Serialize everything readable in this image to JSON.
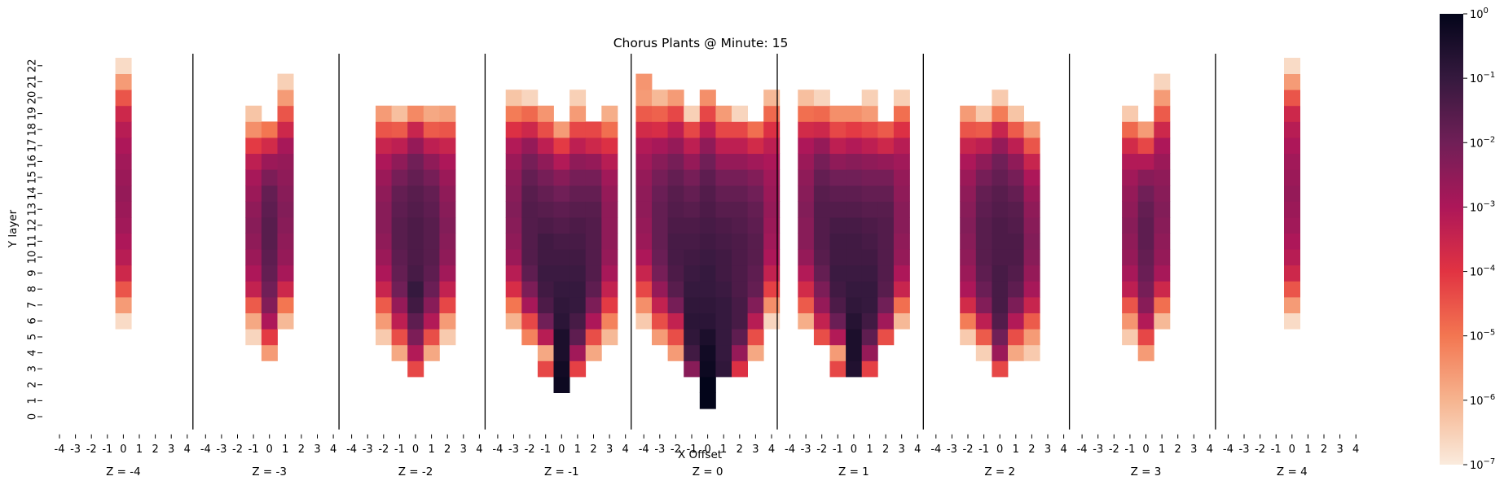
{
  "chart_data": {
    "type": "heatmap",
    "title": "Chorus Plants @ Minute: 15",
    "xlabel": "X Offset",
    "ylabel": "Y layer",
    "x_ticks": [
      "-4",
      "-3",
      "-2",
      "-1",
      "0",
      "1",
      "2",
      "3",
      "4"
    ],
    "y_ticks": [
      "0",
      "1",
      "2",
      "3",
      "4",
      "5",
      "6",
      "7",
      "8",
      "9",
      "10",
      "11",
      "12",
      "13",
      "14",
      "15",
      "16",
      "17",
      "18",
      "19",
      "20",
      "21",
      "22"
    ],
    "value_scale": "log10",
    "value_unit_note": "cell values are stored as log10 exponents",
    "colorbar": {
      "scale": "log",
      "min": 1e-07,
      "max": 1,
      "tick_bases": [
        "10",
        "10",
        "10",
        "10",
        "10",
        "10",
        "10",
        "10"
      ],
      "tick_exponents": [
        "0",
        "−1",
        "−2",
        "−3",
        "−4",
        "−5",
        "−6",
        "−7"
      ],
      "colors": [
        "#faebdd",
        "#f6b48f",
        "#f37651",
        "#e13342",
        "#ad1759",
        "#701f57",
        "#35193e",
        "#03051a"
      ]
    },
    "panels": [
      {
        "label": "Z = -4",
        "columns": [
          {
            "x": 0,
            "y_start": 6,
            "log10_values": [
              -6.7,
              -5.6,
              -4.5,
              -3.6,
              -3.2,
              -3.0,
              -2.8,
              -2.7,
              -2.6,
              -2.7,
              -2.8,
              -3.0,
              -3.2,
              -3.6,
              -4.5,
              -5.6,
              -6.7
            ]
          }
        ]
      },
      {
        "label": "Z = -3",
        "columns": [
          {
            "x": -1,
            "y_start": 5,
            "log10_values": [
              -6.6,
              -5.8,
              -4.6,
              -3.4,
              -3.0,
              -2.7,
              -2.5,
              -2.4,
              -2.5,
              -2.7,
              -2.9,
              -3.3,
              -4.1,
              -5.4,
              -6.3
            ]
          },
          {
            "x": 0,
            "y_start": 4,
            "log10_values": [
              -5.6,
              -4.1,
              -3.0,
              -2.3,
              -2.0,
              -1.8,
              -1.7,
              -1.6,
              -1.6,
              -1.7,
              -1.8,
              -2.2,
              -2.7,
              -3.7,
              -5.0
            ]
          },
          {
            "x": 1,
            "y_start": 6,
            "log10_values": [
              -6.1,
              -5.0,
              -3.6,
              -2.9,
              -2.6,
              -2.5,
              -2.4,
              -2.3,
              -2.4,
              -2.5,
              -2.6,
              -2.9,
              -3.6,
              -4.5,
              -5.6,
              -6.5
            ]
          }
        ]
      },
      {
        "label": "Z = -2",
        "columns": [
          {
            "x": -2,
            "y_start": 5,
            "log10_values": [
              -6.4,
              -5.6,
              -4.6,
              -3.5,
              -3.0,
              -2.7,
              -2.5,
              -2.4,
              -2.4,
              -2.5,
              -2.7,
              -3.0,
              -3.5,
              -4.5,
              -5.6
            ]
          },
          {
            "x": -1,
            "y_start": 4,
            "log10_values": [
              -5.8,
              -4.4,
              -3.3,
              -2.6,
              -2.0,
              -1.8,
              -1.7,
              -1.6,
              -1.6,
              -1.7,
              -1.8,
              -2.1,
              -2.5,
              -3.3,
              -4.6,
              -6.2
            ]
          },
          {
            "x": 0,
            "y_start": 3,
            "log10_values": [
              -4.3,
              -3.1,
              -2.2,
              -1.7,
              -1.2,
              -1.0,
              -1.3,
              -1.4,
              -1.4,
              -1.4,
              -1.5,
              -1.6,
              -1.8,
              -2.0,
              -2.6,
              -3.5,
              -5.3
            ]
          },
          {
            "x": 1,
            "y_start": 4,
            "log10_values": [
              -5.8,
              -4.4,
              -3.1,
              -2.4,
              -1.9,
              -1.7,
              -1.6,
              -1.6,
              -1.6,
              -1.7,
              -1.8,
              -2.1,
              -2.5,
              -3.3,
              -4.6,
              -5.8
            ]
          },
          {
            "x": 2,
            "y_start": 5,
            "log10_values": [
              -6.4,
              -5.6,
              -4.3,
              -3.4,
              -2.8,
              -2.5,
              -2.4,
              -2.3,
              -2.4,
              -2.5,
              -2.7,
              -3.0,
              -3.5,
              -4.5,
              -5.7
            ]
          }
        ]
      },
      {
        "label": "Z = -1",
        "columns": [
          {
            "x": -3,
            "y_start": 6,
            "log10_values": [
              -6.0,
              -5.0,
              -3.8,
              -3.2,
              -2.7,
              -2.5,
              -2.4,
              -2.3,
              -2.4,
              -2.5,
              -2.7,
              -3.1,
              -3.9,
              -5.1,
              -6.3
            ]
          },
          {
            "x": -2,
            "y_start": 5,
            "log10_values": [
              -5.2,
              -4.3,
              -2.9,
              -2.2,
              -1.7,
              -1.5,
              -1.5,
              -1.5,
              -1.5,
              -1.6,
              -1.8,
              -2.1,
              -2.6,
              -3.6,
              -4.8,
              -6.6
            ]
          },
          {
            "x": -1,
            "y_start": 3,
            "log10_values": [
              -4.3,
              -5.8,
              -3.2,
              -2.0,
              -1.4,
              -1.2,
              -1.1,
              -1.2,
              -1.2,
              -1.4,
              -1.6,
              -1.8,
              -2.1,
              -2.5,
              -3.3,
              -4.4,
              -5.5
            ]
          },
          {
            "x": 0,
            "y_start": 2,
            "log10_values": [
              -0.2,
              -0.3,
              -0.5,
              -0.5,
              -0.8,
              -0.9,
              -1.0,
              -1.1,
              -1.2,
              -1.3,
              -1.5,
              -1.7,
              -2.0,
              -2.4,
              -3.1,
              -4.1,
              -5.6
            ]
          },
          {
            "x": 1,
            "y_start": 3,
            "log10_values": [
              -4.2,
              -2.8,
              -1.7,
              -1.3,
              -1.0,
              -1.0,
              -1.1,
              -1.2,
              -1.3,
              -1.4,
              -1.6,
              -1.8,
              -2.1,
              -2.5,
              -3.3,
              -4.3,
              -5.6,
              -6.5
            ]
          },
          {
            "x": 2,
            "y_start": 4,
            "log10_values": [
              -5.8,
              -4.4,
              -3.0,
              -2.2,
              -1.7,
              -1.5,
              -1.5,
              -1.5,
              -1.5,
              -1.6,
              -1.8,
              -2.1,
              -2.6,
              -3.6,
              -4.3
            ]
          },
          {
            "x": 3,
            "y_start": 5,
            "log10_values": [
              -6.1,
              -5.2,
              -4.1,
              -3.4,
              -2.9,
              -2.6,
              -2.5,
              -2.5,
              -2.5,
              -2.6,
              -2.8,
              -3.2,
              -3.9,
              -4.9,
              -5.9
            ]
          }
        ]
      },
      {
        "label": "Z = 0",
        "columns": [
          {
            "x": -4,
            "y_start": 6,
            "log10_values": [
              -6.4,
              -5.4,
              -4.3,
              -3.5,
              -3.0,
              -2.7,
              -2.6,
              -2.5,
              -2.5,
              -2.6,
              -2.8,
              -3.1,
              -3.7,
              -4.6,
              -5.6,
              -5.5
            ]
          },
          {
            "x": -3,
            "y_start": 5,
            "log10_values": [
              -5.6,
              -4.4,
              -3.4,
              -2.6,
              -2.1,
              -1.9,
              -1.8,
              -1.8,
              -1.8,
              -1.9,
              -2.1,
              -2.4,
              -2.9,
              -3.8,
              -4.7,
              -6.1
            ]
          },
          {
            "x": -2,
            "y_start": 4,
            "log10_values": [
              -5.6,
              -4.4,
              -3.4,
              -2.1,
              -1.6,
              -1.4,
              -1.3,
              -1.3,
              -1.4,
              -1.5,
              -1.6,
              -1.8,
              -2.1,
              -2.6,
              -3.3,
              -4.3,
              -5.6
            ]
          },
          {
            "x": -1,
            "y_start": 3,
            "log10_values": [
              -2.4,
              -1.2,
              -0.9,
              -0.8,
              -0.9,
              -1.0,
              -1.1,
              -1.2,
              -1.3,
              -1.4,
              -1.6,
              -1.8,
              -2.1,
              -2.6,
              -3.3,
              -4.3,
              -6.5
            ]
          },
          {
            "x": 0,
            "y_start": 1,
            "log10_values": [
              0.0,
              0.0,
              -0.2,
              -0.3,
              -0.5,
              -0.8,
              -0.9,
              -1.0,
              -1.0,
              -1.1,
              -1.2,
              -1.3,
              -1.4,
              -1.5,
              -1.7,
              -2.0,
              -2.5,
              -3.3,
              -4.3,
              -5.4
            ]
          },
          {
            "x": 1,
            "y_start": 3,
            "log10_values": [
              -0.9,
              -1.0,
              -1.0,
              -1.0,
              -1.0,
              -1.1,
              -1.2,
              -1.2,
              -1.3,
              -1.4,
              -1.6,
              -1.8,
              -2.1,
              -2.6,
              -3.3,
              -4.3,
              -5.6
            ]
          },
          {
            "x": 2,
            "y_start": 3,
            "log10_values": [
              -3.9,
              -2.6,
              -1.7,
              -1.3,
              -1.3,
              -1.4,
              -1.4,
              -1.4,
              -1.4,
              -1.5,
              -1.6,
              -1.8,
              -2.1,
              -2.6,
              -3.3,
              -4.3,
              -6.6
            ]
          },
          {
            "x": 3,
            "y_start": 4,
            "log10_values": [
              -5.8,
              -4.4,
              -3.2,
              -2.3,
              -1.8,
              -1.7,
              -1.6,
              -1.6,
              -1.7,
              -1.8,
              -2.0,
              -2.3,
              -2.8,
              -3.7,
              -4.9
            ]
          },
          {
            "x": 4,
            "y_start": 6,
            "log10_values": [
              -6.6,
              -5.4,
              -4.2,
              -3.4,
              -3.0,
              -2.8,
              -2.7,
              -2.6,
              -2.7,
              -2.8,
              -3.0,
              -3.3,
              -3.9,
              -4.8,
              -6.1
            ]
          }
        ]
      },
      {
        "label": "Z = 1",
        "columns": [
          {
            "x": -3,
            "y_start": 6,
            "log10_values": [
              -5.9,
              -4.6,
              -3.7,
              -3.1,
              -2.6,
              -2.4,
              -2.4,
              -2.3,
              -2.4,
              -2.5,
              -2.7,
              -3.0,
              -3.7,
              -4.9,
              -6.2
            ]
          },
          {
            "x": -2,
            "y_start": 5,
            "log10_values": [
              -4.4,
              -3.4,
              -2.6,
              -2.2,
              -1.8,
              -1.6,
              -1.5,
              -1.5,
              -1.5,
              -1.6,
              -1.8,
              -2.1,
              -2.6,
              -3.6,
              -4.8,
              -6.6
            ]
          },
          {
            "x": -1,
            "y_start": 3,
            "log10_values": [
              -4.3,
              -5.6,
              -3.1,
              -1.9,
              -1.4,
              -1.2,
              -1.1,
              -1.2,
              -1.2,
              -1.3,
              -1.5,
              -1.7,
              -2.0,
              -2.5,
              -3.3,
              -4.3,
              -5.4
            ]
          },
          {
            "x": 0,
            "y_start": 3,
            "log10_values": [
              -0.6,
              -0.5,
              -0.5,
              -0.7,
              -0.9,
              -1.0,
              -1.1,
              -1.2,
              -1.2,
              -1.3,
              -1.5,
              -1.7,
              -2.0,
              -2.4,
              -3.1,
              -4.1,
              -5.4
            ]
          },
          {
            "x": 1,
            "y_start": 3,
            "log10_values": [
              -4.2,
              -2.6,
              -1.7,
              -1.2,
              -1.0,
              -1.0,
              -1.1,
              -1.2,
              -1.3,
              -1.4,
              -1.6,
              -1.8,
              -2.1,
              -2.5,
              -3.3,
              -4.3,
              -5.6,
              -6.5
            ]
          },
          {
            "x": 2,
            "y_start": 5,
            "log10_values": [
              -4.4,
              -2.8,
              -2.0,
              -1.6,
              -1.5,
              -1.5,
              -1.5,
              -1.5,
              -1.6,
              -1.8,
              -2.1,
              -2.6,
              -3.6,
              -4.6
            ]
          },
          {
            "x": 3,
            "y_start": 6,
            "log10_values": [
              -6.1,
              -4.9,
              -3.5,
              -3.0,
              -2.6,
              -2.5,
              -2.4,
              -2.4,
              -2.5,
              -2.6,
              -2.8,
              -3.2,
              -3.9,
              -4.9,
              -6.5
            ]
          }
        ]
      },
      {
        "label": "Z = 2",
        "columns": [
          {
            "x": -2,
            "y_start": 5,
            "log10_values": [
              -6.4,
              -5.1,
              -3.7,
              -3.0,
              -2.7,
              -2.5,
              -2.4,
              -2.3,
              -2.4,
              -2.5,
              -2.7,
              -3.0,
              -3.5,
              -4.5,
              -5.6
            ]
          },
          {
            "x": -1,
            "y_start": 4,
            "log10_values": [
              -6.5,
              -4.6,
              -3.3,
              -2.3,
              -1.9,
              -1.7,
              -1.6,
              -1.6,
              -1.6,
              -1.7,
              -1.8,
              -2.1,
              -2.5,
              -3.3,
              -4.6,
              -6.4
            ]
          },
          {
            "x": 0,
            "y_start": 3,
            "log10_values": [
              -4.3,
              -2.7,
              -2.0,
              -1.5,
              -1.3,
              -1.3,
              -1.3,
              -1.4,
              -1.4,
              -1.4,
              -1.5,
              -1.6,
              -1.8,
              -2.0,
              -2.6,
              -3.5,
              -5.1,
              -6.4
            ]
          },
          {
            "x": 1,
            "y_start": 4,
            "log10_values": [
              -5.8,
              -4.4,
              -3.1,
              -2.2,
              -1.7,
              -1.5,
              -1.4,
              -1.4,
              -1.5,
              -1.6,
              -1.8,
              -2.1,
              -2.5,
              -3.3,
              -4.6,
              -6.3
            ]
          },
          {
            "x": 2,
            "y_start": 4,
            "log10_values": [
              -6.4,
              -5.6,
              -4.6,
              -3.5,
              -2.9,
              -2.6,
              -2.4,
              -2.3,
              -2.4,
              -2.5,
              -2.7,
              -3.0,
              -3.5,
              -4.5,
              -5.6
            ]
          }
        ]
      },
      {
        "label": "Z = 3",
        "columns": [
          {
            "x": -1,
            "y_start": 5,
            "log10_values": [
              -6.4,
              -5.5,
              -4.5,
              -3.3,
              -2.9,
              -2.6,
              -2.5,
              -2.4,
              -2.5,
              -2.6,
              -2.8,
              -3.1,
              -3.7,
              -4.8,
              -6.4
            ]
          },
          {
            "x": 0,
            "y_start": 4,
            "log10_values": [
              -5.6,
              -4.3,
              -3.1,
              -2.4,
              -2.1,
              -1.9,
              -1.8,
              -1.7,
              -1.7,
              -1.8,
              -2.0,
              -2.4,
              -3.1,
              -4.3,
              -5.6
            ]
          },
          {
            "x": 1,
            "y_start": 6,
            "log10_values": [
              -6.1,
              -4.9,
              -3.6,
              -2.9,
              -2.6,
              -2.5,
              -2.4,
              -2.3,
              -2.4,
              -2.5,
              -2.7,
              -3.0,
              -3.6,
              -4.6,
              -5.6,
              -6.6
            ]
          }
        ]
      },
      {
        "label": "Z = 4",
        "columns": [
          {
            "x": 0,
            "y_start": 6,
            "log10_values": [
              -6.7,
              -5.6,
              -4.5,
              -3.6,
              -3.2,
              -3.0,
              -2.8,
              -2.7,
              -2.6,
              -2.7,
              -2.8,
              -3.0,
              -3.2,
              -3.6,
              -4.5,
              -5.6,
              -6.7
            ]
          }
        ]
      }
    ]
  }
}
